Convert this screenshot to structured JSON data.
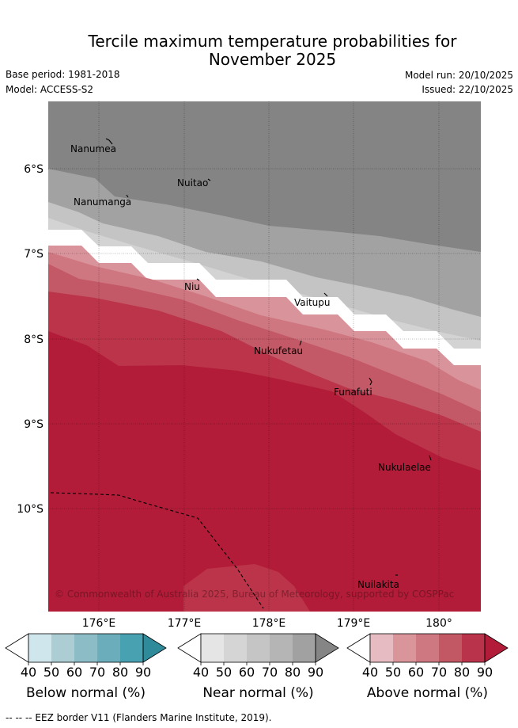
{
  "title_line1": "Tercile maximum temperature probabilities for",
  "title_line2": "November 2025",
  "base_period": "Base period: 1981-2018",
  "model": "Model: ACCESS-S2",
  "model_run": "Model run: 20/10/2025",
  "issued": "Issued: 22/10/2025",
  "copyright": "© Commonwealth of Australia 2025, Bureau of Meteorology, supported by COSPPac",
  "lat_labels": [
    "6°S",
    "7°S",
    "8°S",
    "9°S",
    "10°S"
  ],
  "lon_labels": [
    "176°E",
    "177°E",
    "178°E",
    "179°E",
    "180°"
  ],
  "places": [
    "Nanumea",
    "Nuitao",
    "Nanumanga",
    "Niu",
    "Vaitupu",
    "Nukufetau",
    "Funafuti",
    "Nukulaelae",
    "Nuilakita"
  ],
  "colorbars": {
    "ticks": [
      "40",
      "50",
      "60",
      "70",
      "80",
      "90"
    ],
    "below": {
      "label": "Below normal (%)",
      "colors": [
        "#cfe6ec",
        "#abcdd3",
        "#8cbcc6",
        "#6badbb",
        "#48a1b0",
        "#2f8a9a"
      ]
    },
    "near": {
      "label": "Near normal (%)",
      "colors": [
        "#e5e5e5",
        "#d5d5d5",
        "#c5c5c5",
        "#b5b5b5",
        "#a1a1a1",
        "#858585"
      ]
    },
    "above": {
      "label": "Above normal (%)",
      "colors": [
        "#e6bcc2",
        "#da959b",
        "#ce7882",
        "#c35865",
        "#b9344a",
        "#b21c38"
      ]
    }
  },
  "footer": "-- -- -- EEZ border V11 (Flanders Marine Institute, 2019)."
}
